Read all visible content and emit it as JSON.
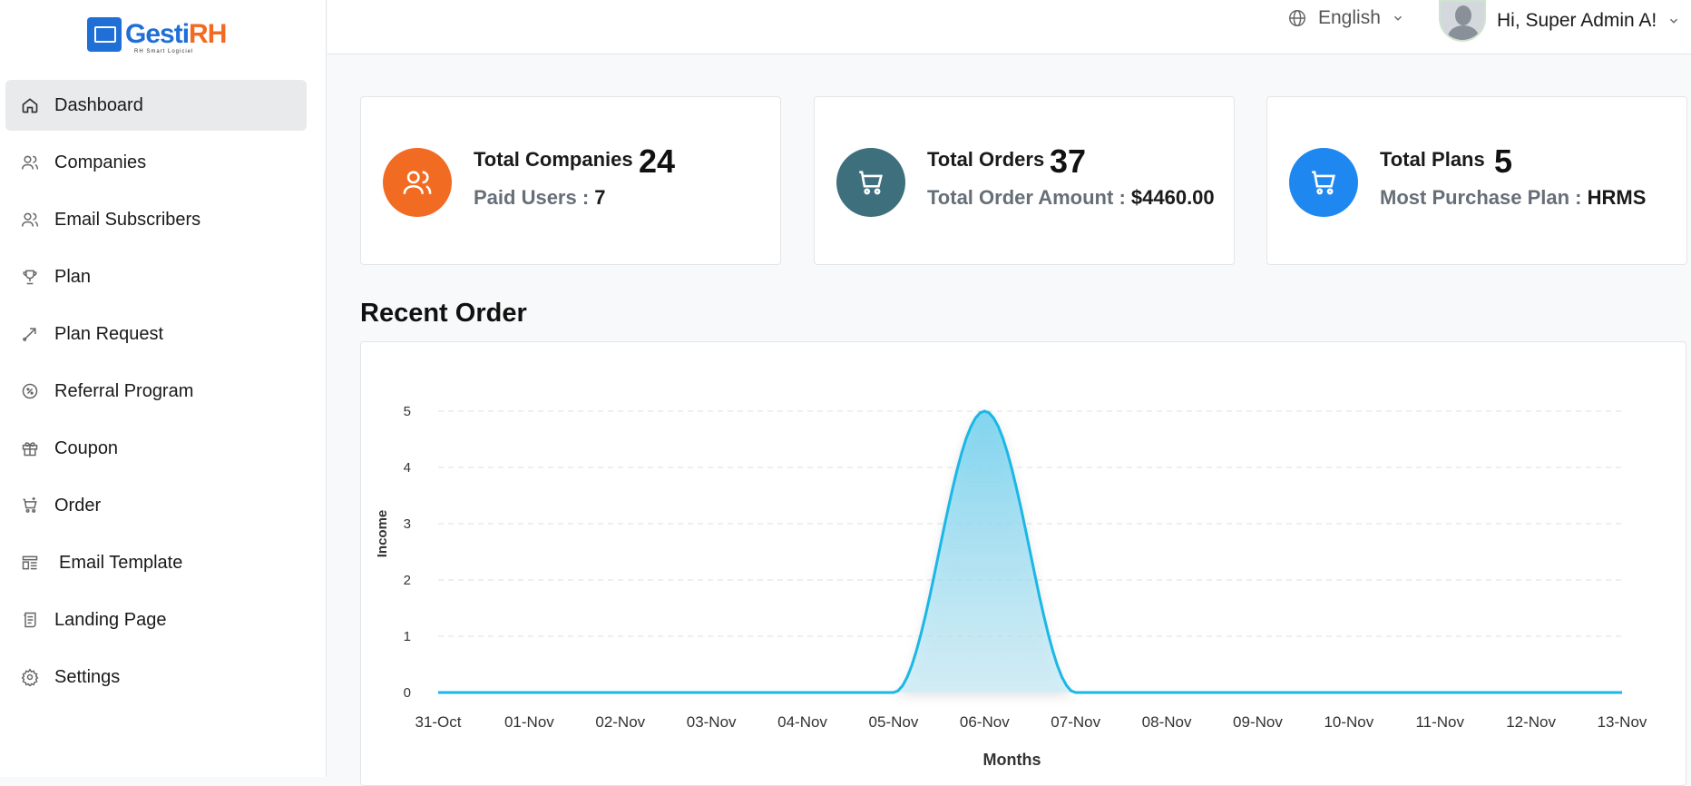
{
  "brand": {
    "name_part1": "Gesti",
    "name_part2": "RH",
    "tagline": "RH Smart Logiciel"
  },
  "sidebar": {
    "items": [
      {
        "label": "Dashboard",
        "icon": "home-icon",
        "active": true
      },
      {
        "label": "Companies",
        "icon": "users-icon"
      },
      {
        "label": "Email Subscribers",
        "icon": "users-icon"
      },
      {
        "label": "Plan",
        "icon": "trophy-icon"
      },
      {
        "label": "Plan Request",
        "icon": "arrow-icon"
      },
      {
        "label": "Referral Program",
        "icon": "discount-icon"
      },
      {
        "label": "Coupon",
        "icon": "gift-icon"
      },
      {
        "label": "Order",
        "icon": "cart-icon"
      },
      {
        "label": "Email Template",
        "icon": "template-icon"
      },
      {
        "label": "Landing Page",
        "icon": "page-icon"
      },
      {
        "label": "Settings",
        "icon": "gear-icon"
      }
    ]
  },
  "header": {
    "language": "English",
    "greeting": "Hi, Super Admin A!"
  },
  "stats": [
    {
      "title": "Total Companies",
      "value": "24",
      "sub_label": "Paid Users :",
      "sub_value": "7",
      "color": "#f26b22",
      "icon": "users-icon"
    },
    {
      "title": "Total Orders",
      "value": "37",
      "sub_label": "Total Order Amount :",
      "sub_value": "$4460.00",
      "color": "#3e6f7d",
      "icon": "cart-icon"
    },
    {
      "title": "Total Plans",
      "value": "5",
      "sub_label": "Most Purchase Plan :",
      "sub_value": "HRMS",
      "color": "#1e88f0",
      "icon": "cart-icon"
    }
  ],
  "recent_order": {
    "title": "Recent Order"
  },
  "chart_data": {
    "type": "area",
    "categories": [
      "31-Oct",
      "01-Nov",
      "02-Nov",
      "03-Nov",
      "04-Nov",
      "05-Nov",
      "06-Nov",
      "07-Nov",
      "08-Nov",
      "09-Nov",
      "10-Nov",
      "11-Nov",
      "12-Nov",
      "13-Nov"
    ],
    "values": [
      0,
      0,
      0,
      0,
      0,
      0,
      5,
      0,
      0,
      0,
      0,
      0,
      0,
      0
    ],
    "xlabel": "Months",
    "ylabel": "Income",
    "ylim": [
      0,
      5
    ],
    "yticks": [
      "0",
      "1",
      "2",
      "3",
      "4",
      "5"
    ],
    "grid": true,
    "color": "#1bb7e6"
  }
}
